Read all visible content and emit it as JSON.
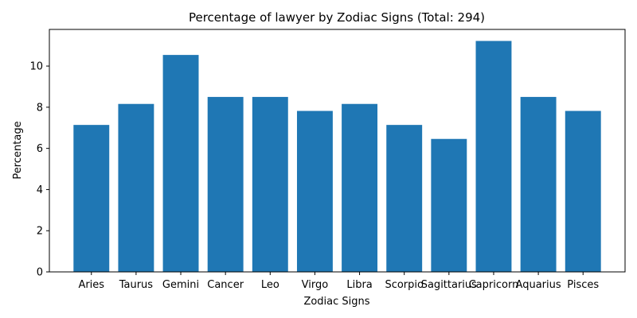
{
  "chart_data": {
    "type": "bar",
    "title": "Percentage of lawyer by Zodiac Signs (Total: 294)",
    "xlabel": "Zodiac Signs",
    "ylabel": "Percentage",
    "categories": [
      "Aries",
      "Taurus",
      "Gemini",
      "Cancer",
      "Leo",
      "Virgo",
      "Libra",
      "Scorpio",
      "Sagittarius",
      "Capricorn",
      "Aquarius",
      "Pisces"
    ],
    "values": [
      7.14,
      8.16,
      10.54,
      8.5,
      8.5,
      7.82,
      8.16,
      7.14,
      6.46,
      11.22,
      8.5,
      7.82
    ],
    "ylim": [
      0,
      11.78
    ],
    "yticks": [
      0,
      2,
      4,
      6,
      8,
      10
    ],
    "bar_color": "#1f77b4",
    "grid": false,
    "legend": "none"
  }
}
